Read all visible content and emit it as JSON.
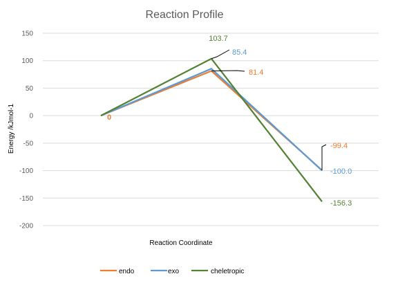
{
  "chart_data": {
    "type": "line",
    "title": "Reaction Profile",
    "xlabel": "Reaction Coordinate",
    "ylabel": "Energy /kJmol-1",
    "ylim": [
      -200,
      150
    ],
    "yticks": [
      150,
      100,
      50,
      0,
      -50,
      -100,
      -150,
      -200
    ],
    "grid": true,
    "legend_placement": "bottom",
    "x": [
      1,
      2,
      3
    ],
    "series": [
      {
        "name": "endo",
        "color": "#ed7d31",
        "values": [
          0,
          81.4,
          -99.4
        ],
        "labels": [
          "0",
          "81.4",
          "-99.4"
        ]
      },
      {
        "name": "exo",
        "color": "#5b9bd5",
        "values": [
          0,
          85.4,
          -100.0
        ],
        "labels": [
          "0",
          "85.4",
          "-100.0"
        ]
      },
      {
        "name": "cheletropic",
        "color": "#548235",
        "values": [
          0,
          103.7,
          -156.3
        ],
        "labels": [
          "0",
          "103.7",
          "-156.3"
        ]
      }
    ]
  }
}
